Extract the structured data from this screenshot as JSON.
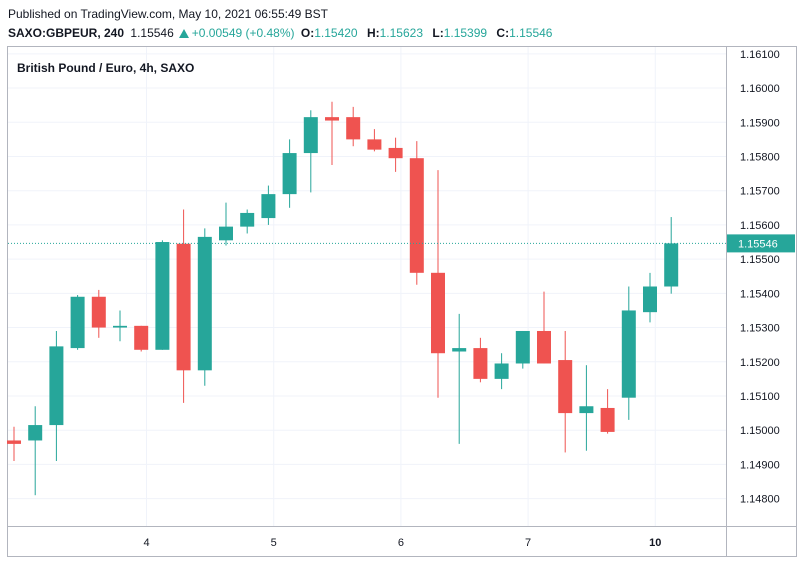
{
  "header": {
    "published": "Published on TradingView.com, May 10, 2021 06:55:49 BST",
    "symbol": "SAXO:GBPEUR, 240",
    "last": "1.15546",
    "change": "+0.00549 (+0.48%)",
    "o_label": "O:",
    "o_value": "1.15420",
    "h_label": "H:",
    "h_value": "1.15623",
    "l_label": "L:",
    "l_value": "1.15399",
    "c_label": "C:",
    "c_value": "1.15546"
  },
  "colors": {
    "up": "#26a69a",
    "down": "#ef5350",
    "grid": "#f0f3fa",
    "border": "#b2b5be"
  },
  "chart_data": {
    "type": "candlestick",
    "title": "British Pound / Euro, 4h, SAXO",
    "ylim": [
      1.1472,
      1.1612
    ],
    "y_ticks": [
      "1.14800",
      "1.14900",
      "1.15000",
      "1.15100",
      "1.15200",
      "1.15300",
      "1.15400",
      "1.15500",
      "1.15600",
      "1.15700",
      "1.15800",
      "1.15900",
      "1.16000",
      "1.16100"
    ],
    "x_ticks": [
      "4",
      "5",
      "6",
      "7",
      "10"
    ],
    "last_price": "1.15546",
    "candles": [
      {
        "o": 1.1497,
        "h": 1.1501,
        "l": 1.1491,
        "c": 1.1496
      },
      {
        "o": 1.1497,
        "h": 1.1507,
        "l": 1.1481,
        "c": 1.15015
      },
      {
        "o": 1.15015,
        "h": 1.1529,
        "l": 1.1491,
        "c": 1.15245
      },
      {
        "o": 1.1524,
        "h": 1.15395,
        "l": 1.15235,
        "c": 1.1539
      },
      {
        "o": 1.1539,
        "h": 1.1541,
        "l": 1.1527,
        "c": 1.153
      },
      {
        "o": 1.153,
        "h": 1.1535,
        "l": 1.1526,
        "c": 1.15305
      },
      {
        "o": 1.15305,
        "h": 1.15305,
        "l": 1.1523,
        "c": 1.15235
      },
      {
        "o": 1.15235,
        "h": 1.15555,
        "l": 1.15235,
        "c": 1.1555
      },
      {
        "o": 1.15545,
        "h": 1.15645,
        "l": 1.1508,
        "c": 1.15175
      },
      {
        "o": 1.15175,
        "h": 1.1559,
        "l": 1.1513,
        "c": 1.15565
      },
      {
        "o": 1.15555,
        "h": 1.15665,
        "l": 1.1554,
        "c": 1.15595
      },
      {
        "o": 1.15595,
        "h": 1.15645,
        "l": 1.15575,
        "c": 1.15635
      },
      {
        "o": 1.1562,
        "h": 1.15715,
        "l": 1.156,
        "c": 1.1569
      },
      {
        "o": 1.1569,
        "h": 1.1585,
        "l": 1.1565,
        "c": 1.1581
      },
      {
        "o": 1.1581,
        "h": 1.15935,
        "l": 1.15695,
        "c": 1.15915
      },
      {
        "o": 1.15915,
        "h": 1.1596,
        "l": 1.15775,
        "c": 1.15905
      },
      {
        "o": 1.15915,
        "h": 1.15945,
        "l": 1.1583,
        "c": 1.1585
      },
      {
        "o": 1.1585,
        "h": 1.1588,
        "l": 1.15815,
        "c": 1.1582
      },
      {
        "o": 1.15825,
        "h": 1.15855,
        "l": 1.15755,
        "c": 1.15795
      },
      {
        "o": 1.15795,
        "h": 1.15845,
        "l": 1.15425,
        "c": 1.1546
      },
      {
        "o": 1.1546,
        "h": 1.1576,
        "l": 1.15095,
        "c": 1.15225
      },
      {
        "o": 1.1523,
        "h": 1.1534,
        "l": 1.1496,
        "c": 1.1524
      },
      {
        "o": 1.1524,
        "h": 1.1527,
        "l": 1.1514,
        "c": 1.1515
      },
      {
        "o": 1.1515,
        "h": 1.15225,
        "l": 1.1512,
        "c": 1.15195
      },
      {
        "o": 1.15195,
        "h": 1.1529,
        "l": 1.1518,
        "c": 1.1529
      },
      {
        "o": 1.1529,
        "h": 1.15405,
        "l": 1.15195,
        "c": 1.15195
      },
      {
        "o": 1.15205,
        "h": 1.1529,
        "l": 1.14935,
        "c": 1.1505
      },
      {
        "o": 1.1505,
        "h": 1.1519,
        "l": 1.1494,
        "c": 1.1507
      },
      {
        "o": 1.15065,
        "h": 1.1512,
        "l": 1.1499,
        "c": 1.14995
      },
      {
        "o": 1.15095,
        "h": 1.1542,
        "l": 1.1503,
        "c": 1.1535
      },
      {
        "o": 1.15345,
        "h": 1.1546,
        "l": 1.15315,
        "c": 1.1542
      },
      {
        "o": 1.1542,
        "h": 1.15623,
        "l": 1.15399,
        "c": 1.15546
      }
    ]
  }
}
